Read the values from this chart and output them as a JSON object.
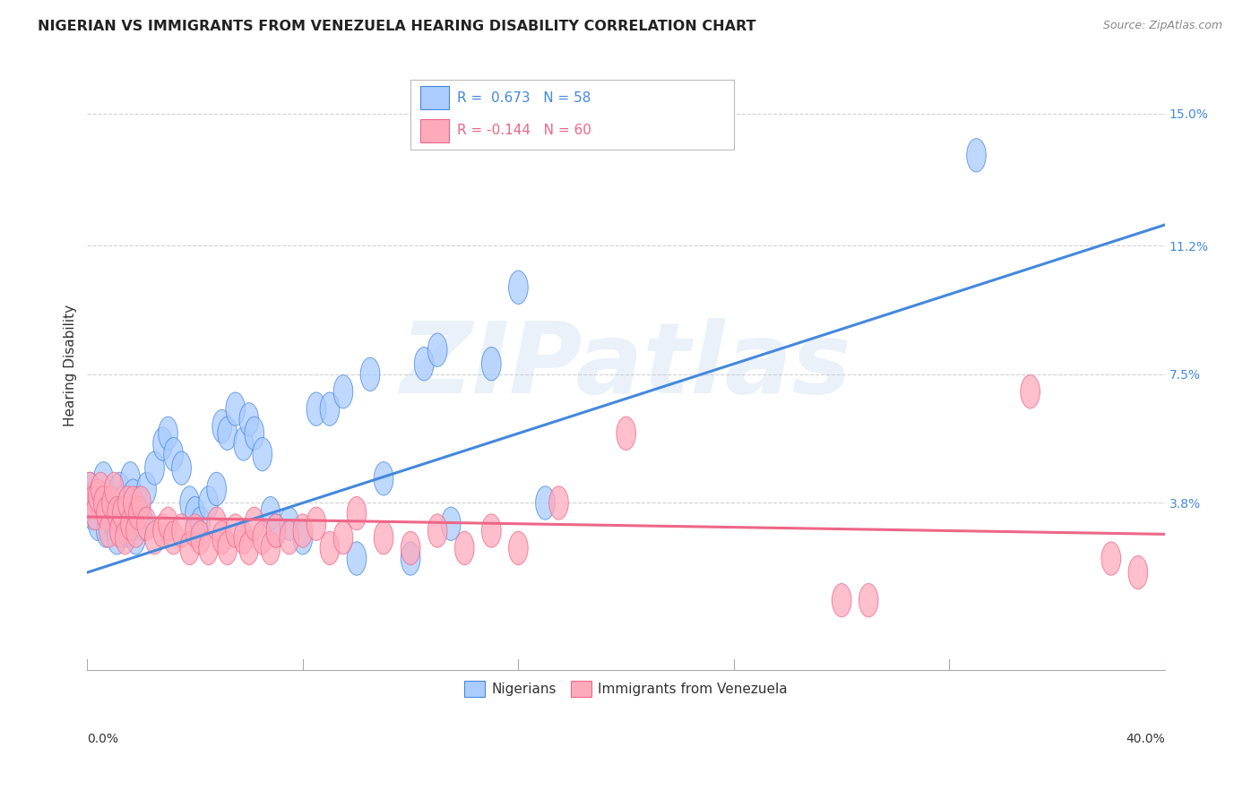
{
  "title": "NIGERIAN VS IMMIGRANTS FROM VENEZUELA HEARING DISABILITY CORRELATION CHART",
  "source": "Source: ZipAtlas.com",
  "ylabel": "Hearing Disability",
  "yticks": [
    "15.0%",
    "11.2%",
    "7.5%",
    "3.8%"
  ],
  "ytick_vals": [
    0.15,
    0.112,
    0.075,
    0.038
  ],
  "xmin": 0.0,
  "xmax": 0.4,
  "ymin": -0.01,
  "ymax": 0.165,
  "watermark": "ZIPatlas",
  "blue_scatter": [
    [
      0.0,
      0.038
    ],
    [
      0.001,
      0.042
    ],
    [
      0.002,
      0.035
    ],
    [
      0.003,
      0.04
    ],
    [
      0.004,
      0.032
    ],
    [
      0.005,
      0.038
    ],
    [
      0.006,
      0.045
    ],
    [
      0.007,
      0.03
    ],
    [
      0.008,
      0.035
    ],
    [
      0.009,
      0.038
    ],
    [
      0.01,
      0.032
    ],
    [
      0.011,
      0.028
    ],
    [
      0.012,
      0.042
    ],
    [
      0.013,
      0.038
    ],
    [
      0.014,
      0.035
    ],
    [
      0.015,
      0.03
    ],
    [
      0.016,
      0.045
    ],
    [
      0.017,
      0.04
    ],
    [
      0.018,
      0.028
    ],
    [
      0.019,
      0.038
    ],
    [
      0.02,
      0.035
    ],
    [
      0.021,
      0.032
    ],
    [
      0.022,
      0.042
    ],
    [
      0.025,
      0.048
    ],
    [
      0.028,
      0.055
    ],
    [
      0.03,
      0.058
    ],
    [
      0.032,
      0.052
    ],
    [
      0.035,
      0.048
    ],
    [
      0.038,
      0.038
    ],
    [
      0.04,
      0.035
    ],
    [
      0.042,
      0.032
    ],
    [
      0.045,
      0.038
    ],
    [
      0.048,
      0.042
    ],
    [
      0.05,
      0.06
    ],
    [
      0.052,
      0.058
    ],
    [
      0.055,
      0.065
    ],
    [
      0.058,
      0.055
    ],
    [
      0.06,
      0.062
    ],
    [
      0.062,
      0.058
    ],
    [
      0.065,
      0.052
    ],
    [
      0.068,
      0.035
    ],
    [
      0.07,
      0.03
    ],
    [
      0.075,
      0.032
    ],
    [
      0.08,
      0.028
    ],
    [
      0.085,
      0.065
    ],
    [
      0.09,
      0.065
    ],
    [
      0.095,
      0.07
    ],
    [
      0.1,
      0.022
    ],
    [
      0.105,
      0.075
    ],
    [
      0.11,
      0.045
    ],
    [
      0.12,
      0.022
    ],
    [
      0.125,
      0.078
    ],
    [
      0.13,
      0.082
    ],
    [
      0.135,
      0.032
    ],
    [
      0.15,
      0.078
    ],
    [
      0.16,
      0.1
    ],
    [
      0.17,
      0.038
    ],
    [
      0.33,
      0.138
    ]
  ],
  "pink_scatter": [
    [
      0.0,
      0.038
    ],
    [
      0.001,
      0.042
    ],
    [
      0.002,
      0.038
    ],
    [
      0.003,
      0.035
    ],
    [
      0.004,
      0.04
    ],
    [
      0.005,
      0.042
    ],
    [
      0.006,
      0.038
    ],
    [
      0.007,
      0.035
    ],
    [
      0.008,
      0.03
    ],
    [
      0.009,
      0.038
    ],
    [
      0.01,
      0.042
    ],
    [
      0.011,
      0.035
    ],
    [
      0.012,
      0.03
    ],
    [
      0.013,
      0.035
    ],
    [
      0.014,
      0.028
    ],
    [
      0.015,
      0.038
    ],
    [
      0.016,
      0.032
    ],
    [
      0.017,
      0.038
    ],
    [
      0.018,
      0.03
    ],
    [
      0.019,
      0.035
    ],
    [
      0.02,
      0.038
    ],
    [
      0.022,
      0.032
    ],
    [
      0.025,
      0.028
    ],
    [
      0.028,
      0.03
    ],
    [
      0.03,
      0.032
    ],
    [
      0.032,
      0.028
    ],
    [
      0.035,
      0.03
    ],
    [
      0.038,
      0.025
    ],
    [
      0.04,
      0.03
    ],
    [
      0.042,
      0.028
    ],
    [
      0.045,
      0.025
    ],
    [
      0.048,
      0.032
    ],
    [
      0.05,
      0.028
    ],
    [
      0.052,
      0.025
    ],
    [
      0.055,
      0.03
    ],
    [
      0.058,
      0.028
    ],
    [
      0.06,
      0.025
    ],
    [
      0.062,
      0.032
    ],
    [
      0.065,
      0.028
    ],
    [
      0.068,
      0.025
    ],
    [
      0.07,
      0.03
    ],
    [
      0.075,
      0.028
    ],
    [
      0.08,
      0.03
    ],
    [
      0.085,
      0.032
    ],
    [
      0.09,
      0.025
    ],
    [
      0.095,
      0.028
    ],
    [
      0.1,
      0.035
    ],
    [
      0.11,
      0.028
    ],
    [
      0.12,
      0.025
    ],
    [
      0.13,
      0.03
    ],
    [
      0.14,
      0.025
    ],
    [
      0.15,
      0.03
    ],
    [
      0.16,
      0.025
    ],
    [
      0.175,
      0.038
    ],
    [
      0.2,
      0.058
    ],
    [
      0.28,
      0.01
    ],
    [
      0.29,
      0.01
    ],
    [
      0.35,
      0.07
    ],
    [
      0.38,
      0.022
    ],
    [
      0.39,
      0.018
    ]
  ],
  "blue_line": [
    [
      0.0,
      0.018
    ],
    [
      0.4,
      0.118
    ]
  ],
  "pink_line": [
    [
      0.0,
      0.034
    ],
    [
      0.4,
      0.029
    ]
  ],
  "blue_color": "#4488dd",
  "pink_color": "#ee6688",
  "blue_scatter_color": "#aaccff",
  "pink_scatter_color": "#ffaabb",
  "background_color": "#ffffff",
  "grid_color": "#cccccc"
}
